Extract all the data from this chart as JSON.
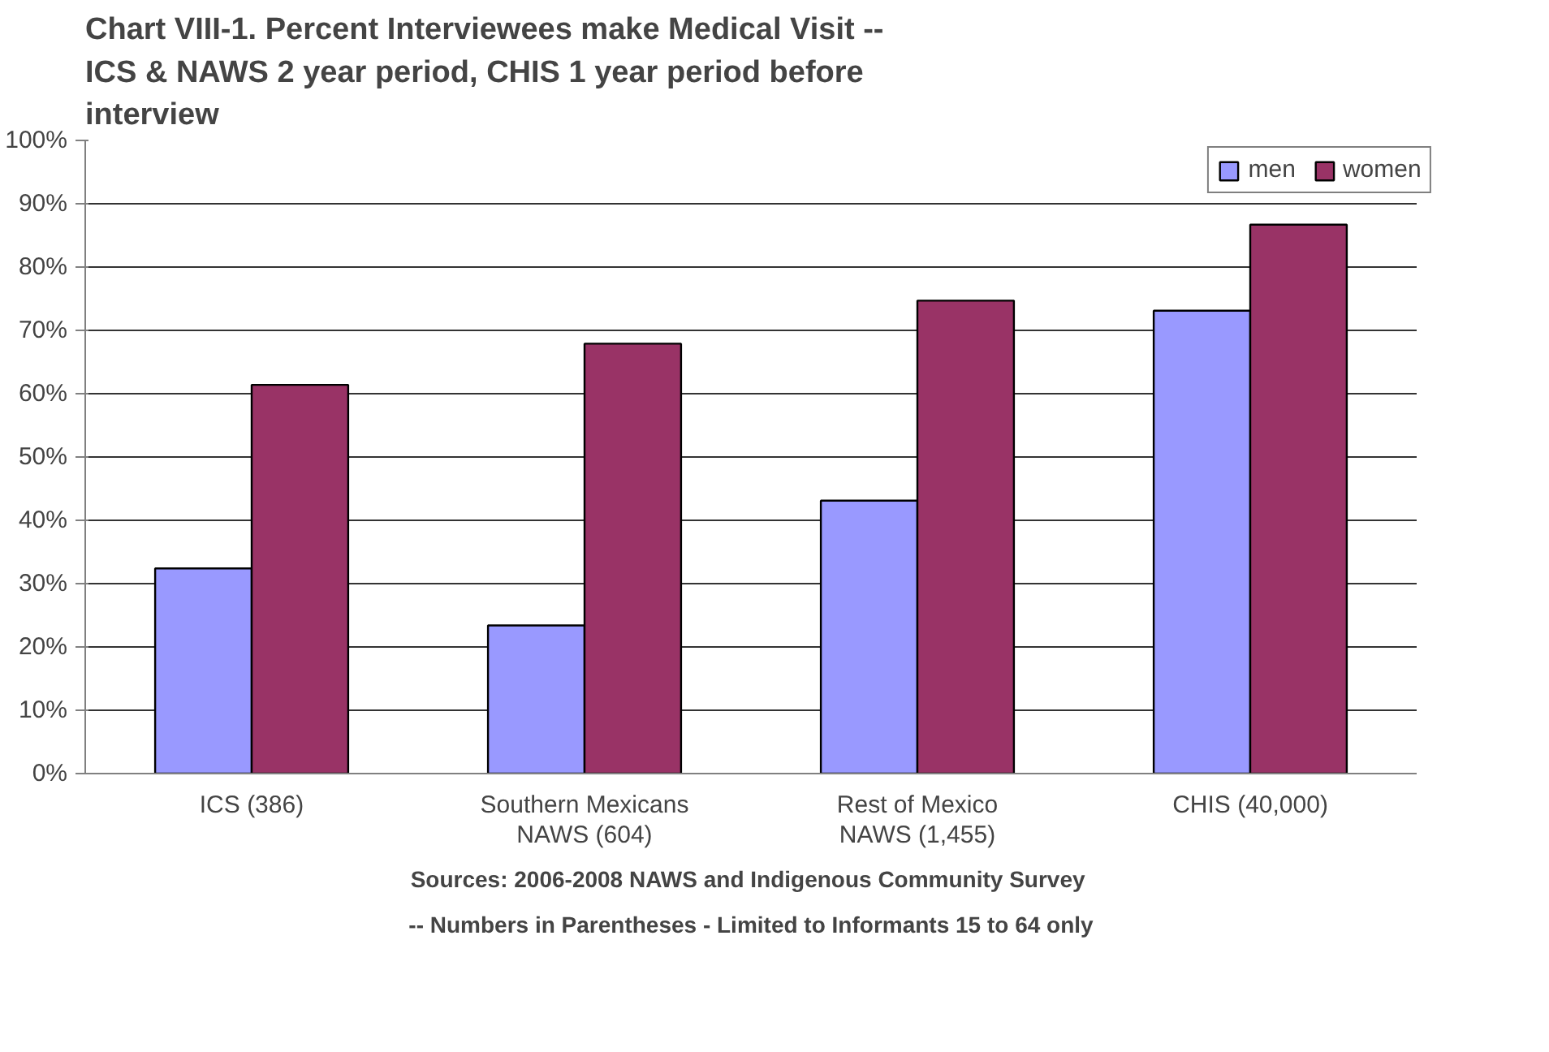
{
  "chart_data": {
    "type": "bar",
    "title": "Chart VIII-1.  Percent Interviewees make Medical Visit -- ICS & NAWS 2 year period, CHIS 1 year period before interview",
    "categories": [
      "ICS (386)",
      "Southern Mexicans NAWS (604)",
      "Rest of Mexico NAWS (1,455)",
      "CHIS (40,000)"
    ],
    "series": [
      {
        "name": "men",
        "color": "#9999ff",
        "values": [
          32.4,
          23.4,
          43.1,
          73.1
        ]
      },
      {
        "name": "women",
        "color": "#993366",
        "values": [
          61.4,
          67.9,
          74.7,
          86.7
        ]
      }
    ],
    "ylim": [
      0,
      100
    ],
    "yticks": [
      {
        "value": 0,
        "label": "0%"
      },
      {
        "value": 10,
        "label": "10%"
      },
      {
        "value": 20,
        "label": "20%"
      },
      {
        "value": 30,
        "label": "30%"
      },
      {
        "value": 40,
        "label": "40%"
      },
      {
        "value": 50,
        "label": "50%"
      },
      {
        "value": 60,
        "label": "60%"
      },
      {
        "value": 70,
        "label": "70%"
      },
      {
        "value": 80,
        "label": "80%"
      },
      {
        "value": 90,
        "label": "90%"
      },
      {
        "value": 100,
        "label": "100%"
      }
    ],
    "grid": "y",
    "legend": "top right",
    "annotations": [
      "Sources:  2006-2008 NAWS and Indigenous Community Survey",
      "-- Numbers in Parentheses - Limited to Informants 15 to 64 only"
    ]
  }
}
